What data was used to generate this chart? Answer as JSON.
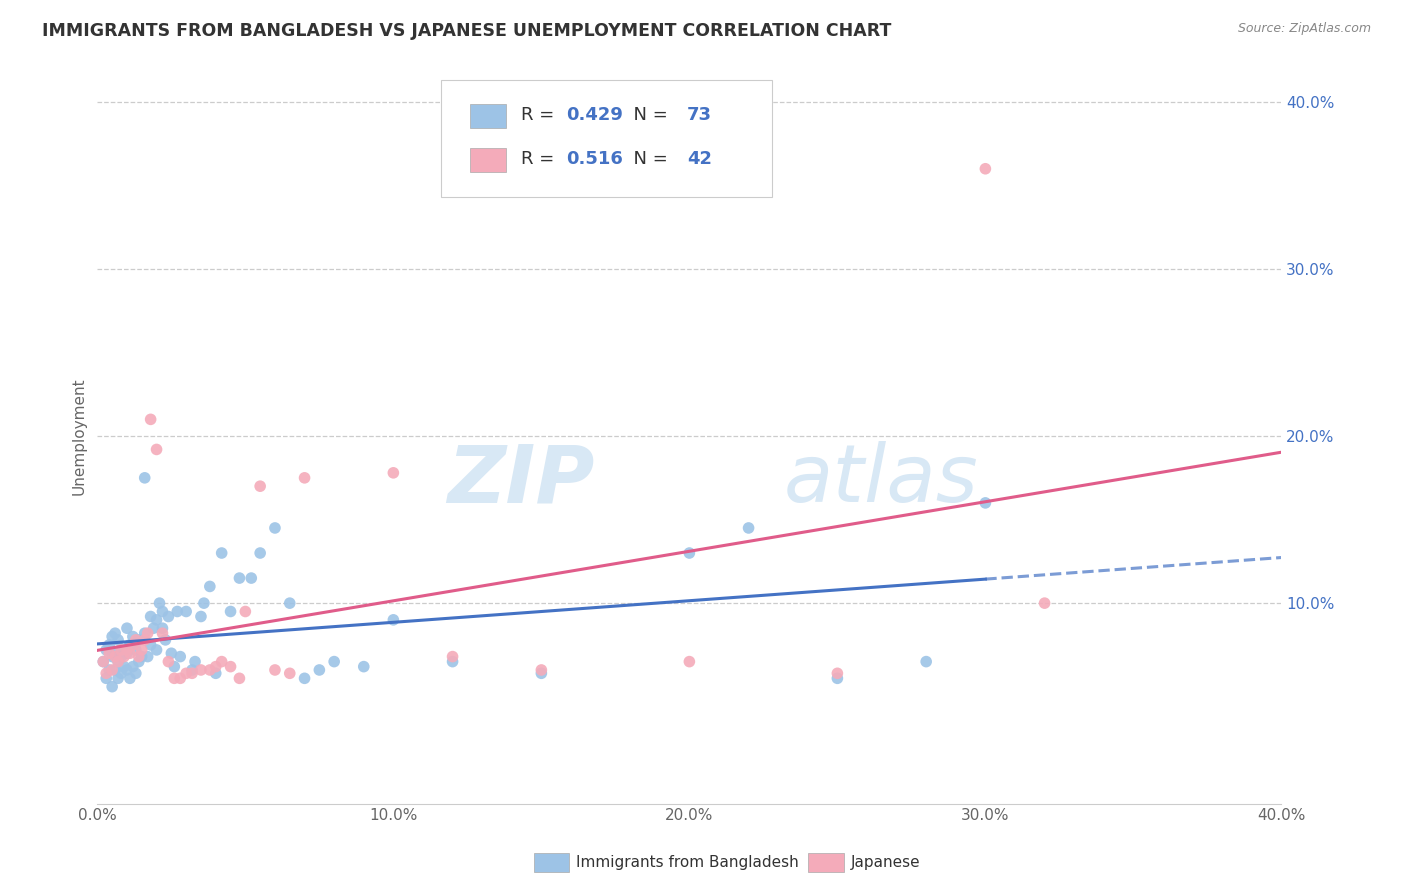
{
  "title": "IMMIGRANTS FROM BANGLADESH VS JAPANESE UNEMPLOYMENT CORRELATION CHART",
  "source": "Source: ZipAtlas.com",
  "ylabel": "Unemployment",
  "xlim": [
    0.0,
    40.0
  ],
  "ylim": [
    -2.0,
    42.0
  ],
  "xticks": [
    0.0,
    10.0,
    20.0,
    30.0,
    40.0
  ],
  "yticks": [
    10.0,
    20.0,
    30.0,
    40.0
  ],
  "xtick_labels": [
    "0.0%",
    "10.0%",
    "20.0%",
    "30.0%",
    "40.0%"
  ],
  "ytick_labels": [
    "10.0%",
    "20.0%",
    "30.0%",
    "40.0%"
  ],
  "legend_label1": "Immigrants from Bangladesh",
  "legend_label2": "Japanese",
  "R1": "0.429",
  "N1": "73",
  "R2": "0.516",
  "N2": "42",
  "color1": "#9DC3E6",
  "color2": "#F4ABBA",
  "line_color1": "#4472C4",
  "line_color2": "#E05C8A",
  "scatter1_x": [
    0.2,
    0.3,
    0.3,
    0.4,
    0.4,
    0.5,
    0.5,
    0.5,
    0.6,
    0.6,
    0.6,
    0.7,
    0.7,
    0.7,
    0.8,
    0.8,
    0.9,
    0.9,
    1.0,
    1.0,
    1.0,
    1.1,
    1.1,
    1.2,
    1.2,
    1.3,
    1.3,
    1.4,
    1.4,
    1.5,
    1.6,
    1.6,
    1.7,
    1.8,
    1.8,
    1.9,
    2.0,
    2.0,
    2.1,
    2.2,
    2.2,
    2.3,
    2.4,
    2.5,
    2.6,
    2.7,
    2.8,
    3.0,
    3.2,
    3.3,
    3.5,
    3.6,
    3.8,
    4.0,
    4.2,
    4.5,
    4.8,
    5.2,
    5.5,
    6.0,
    6.5,
    7.0,
    7.5,
    8.0,
    9.0,
    10.0,
    12.0,
    15.0,
    20.0,
    22.0,
    25.0,
    28.0,
    30.0
  ],
  "scatter1_y": [
    6.5,
    5.5,
    7.2,
    6.0,
    7.5,
    5.0,
    6.8,
    8.0,
    6.0,
    7.0,
    8.2,
    5.5,
    6.5,
    7.8,
    5.8,
    6.8,
    6.2,
    7.2,
    6.0,
    7.0,
    8.5,
    5.5,
    7.5,
    6.2,
    8.0,
    5.8,
    7.2,
    6.5,
    7.8,
    6.8,
    17.5,
    8.2,
    6.8,
    9.2,
    7.5,
    8.5,
    9.0,
    7.2,
    10.0,
    8.5,
    9.5,
    7.8,
    9.2,
    7.0,
    6.2,
    9.5,
    6.8,
    9.5,
    6.0,
    6.5,
    9.2,
    10.0,
    11.0,
    5.8,
    13.0,
    9.5,
    11.5,
    11.5,
    13.0,
    14.5,
    10.0,
    5.5,
    6.0,
    6.5,
    6.2,
    9.0,
    6.5,
    5.8,
    13.0,
    14.5,
    5.5,
    6.5,
    16.0
  ],
  "scatter2_x": [
    0.2,
    0.3,
    0.4,
    0.5,
    0.6,
    0.7,
    0.8,
    0.9,
    1.0,
    1.1,
    1.2,
    1.3,
    1.4,
    1.5,
    1.6,
    1.7,
    1.8,
    2.0,
    2.2,
    2.4,
    2.6,
    2.8,
    3.0,
    3.2,
    3.5,
    3.8,
    4.0,
    4.2,
    4.5,
    4.8,
    5.0,
    5.5,
    6.0,
    6.5,
    7.0,
    10.0,
    12.0,
    15.0,
    20.0,
    25.0,
    30.0,
    32.0
  ],
  "scatter2_y": [
    6.5,
    5.8,
    7.0,
    6.0,
    6.8,
    6.5,
    7.2,
    6.8,
    7.2,
    7.0,
    7.5,
    7.8,
    6.8,
    7.2,
    7.8,
    8.2,
    21.0,
    19.2,
    8.2,
    6.5,
    5.5,
    5.5,
    5.8,
    5.8,
    6.0,
    6.0,
    6.2,
    6.5,
    6.2,
    5.5,
    9.5,
    17.0,
    6.0,
    5.8,
    17.5,
    17.8,
    6.8,
    6.0,
    6.5,
    5.8,
    36.0,
    10.0
  ],
  "watermark_zip_color": "#D8E8F5",
  "watermark_atlas_color": "#D8E8F5",
  "bg_color": "white",
  "grid_color": "#CCCCCC",
  "title_color": "#333333",
  "axis_label_color": "#666666",
  "ytick_color": "#4472C4",
  "xtick_color": "#666666",
  "source_color": "#888888",
  "legend_text_dark": "#333333",
  "legend_text_blue": "#4472C4"
}
